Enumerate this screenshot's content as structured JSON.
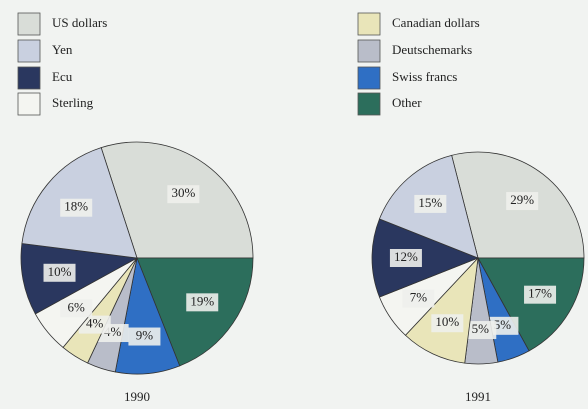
{
  "chart_data": [
    {
      "type": "pie",
      "title": "1990",
      "categories": [
        "US dollars",
        "Other",
        "Swiss francs",
        "Deutschemarks",
        "Canadian dollars",
        "Sterling",
        "Ecu",
        "Yen"
      ],
      "values": [
        30,
        19,
        9,
        4,
        4,
        6,
        10,
        18
      ],
      "value_labels": [
        "30%",
        "19%",
        "9%",
        "4%",
        "4%",
        "6%",
        "10%",
        "18%"
      ],
      "colors": [
        "#d9ddd8",
        "#2c6e5c",
        "#2f6fc4",
        "#b9bdc9",
        "#e9e5b9",
        "#f4f5f1",
        "#2a375f",
        "#c9d0e0"
      ]
    },
    {
      "type": "pie",
      "title": "1991",
      "categories": [
        "US dollars",
        "Other",
        "Swiss francs",
        "Deutschemarks",
        "Canadian dollars",
        "Sterling",
        "Ecu",
        "Yen"
      ],
      "values": [
        29,
        17,
        5,
        5,
        10,
        7,
        12,
        15
      ],
      "value_labels": [
        "29%",
        "17%",
        "5%",
        "5%",
        "10%",
        "7%",
        "12%",
        "15%"
      ],
      "colors": [
        "#d9ddd8",
        "#2c6e5c",
        "#2f6fc4",
        "#b9bdc9",
        "#e9e5b9",
        "#f4f5f1",
        "#2a375f",
        "#c9d0e0"
      ]
    }
  ]
}
